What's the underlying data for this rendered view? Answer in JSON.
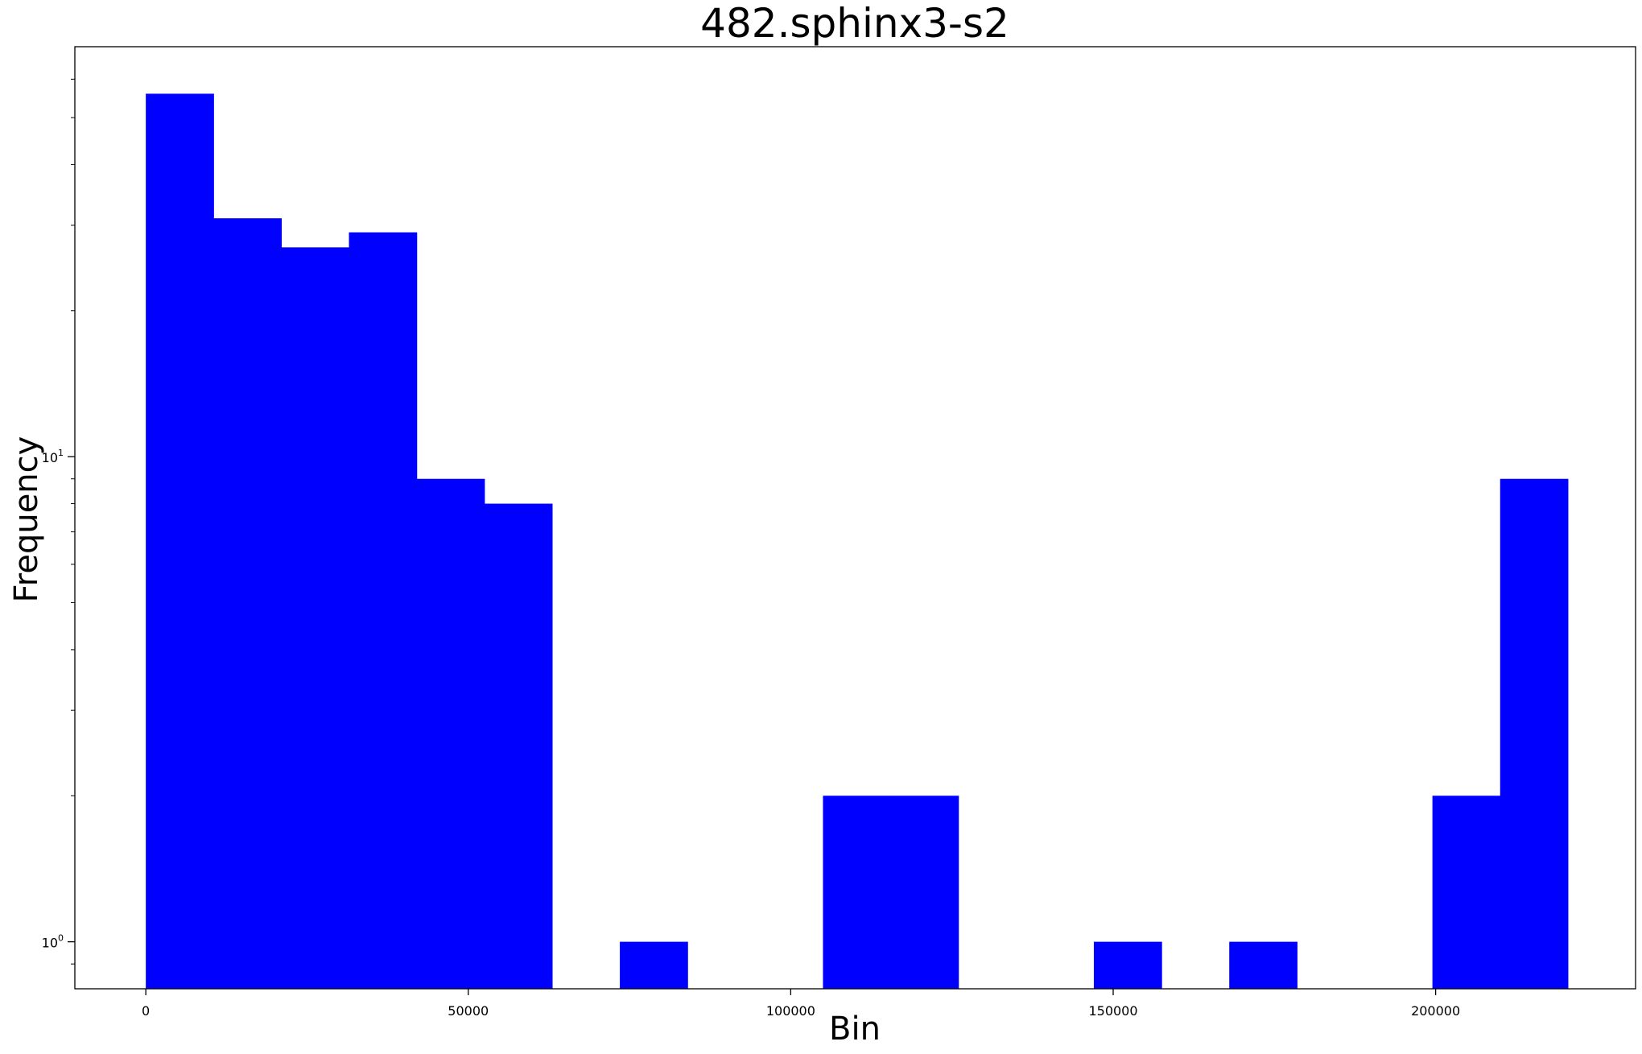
{
  "chart_data": {
    "type": "bar",
    "title": "482.sphinx3-s2",
    "xlabel": "Bin",
    "ylabel": "Frequency",
    "y_scale": "log",
    "xlim": [
      -11000,
      231000
    ],
    "ylim": [
      0.8,
      70
    ],
    "grid": false,
    "legend": "none",
    "bar_color": "#0000ff",
    "bin_width": 10500,
    "bins": [
      {
        "x0": 0,
        "x1": 10500,
        "value": 56
      },
      {
        "x0": 10500,
        "x1": 21000,
        "value": 31
      },
      {
        "x0": 21000,
        "x1": 31500,
        "value": 27
      },
      {
        "x0": 31500,
        "x1": 42000,
        "value": 29
      },
      {
        "x0": 42000,
        "x1": 52500,
        "value": 9
      },
      {
        "x0": 52500,
        "x1": 63000,
        "value": 8
      },
      {
        "x0": 63000,
        "x1": 73500,
        "value": 0
      },
      {
        "x0": 73500,
        "x1": 84000,
        "value": 1
      },
      {
        "x0": 84000,
        "x1": 94500,
        "value": 0
      },
      {
        "x0": 94500,
        "x1": 105000,
        "value": 0
      },
      {
        "x0": 105000,
        "x1": 115500,
        "value": 2
      },
      {
        "x0": 115500,
        "x1": 126000,
        "value": 2
      },
      {
        "x0": 126000,
        "x1": 136500,
        "value": 0
      },
      {
        "x0": 136500,
        "x1": 147000,
        "value": 0
      },
      {
        "x0": 147000,
        "x1": 157500,
        "value": 1
      },
      {
        "x0": 157500,
        "x1": 168000,
        "value": 0
      },
      {
        "x0": 168000,
        "x1": 178500,
        "value": 1
      },
      {
        "x0": 178500,
        "x1": 189000,
        "value": 0
      },
      {
        "x0": 189000,
        "x1": 199500,
        "value": 0
      },
      {
        "x0": 199500,
        "x1": 210000,
        "value": 2
      },
      {
        "x0": 210000,
        "x1": 220500,
        "value": 9
      }
    ],
    "x_ticks": [
      {
        "value": 0,
        "label": "0"
      },
      {
        "value": 50000,
        "label": "50000"
      },
      {
        "value": 100000,
        "label": "100000"
      },
      {
        "value": 150000,
        "label": "150000"
      },
      {
        "value": 200000,
        "label": "200000"
      }
    ],
    "y_major_ticks": [
      {
        "value": 1,
        "base": "10",
        "exp": "0"
      },
      {
        "value": 10,
        "base": "10",
        "exp": "1"
      }
    ],
    "y_minor_ticks": [
      0.9,
      2,
      3,
      4,
      5,
      6,
      7,
      8,
      9,
      20,
      30,
      40,
      50,
      60
    ]
  }
}
